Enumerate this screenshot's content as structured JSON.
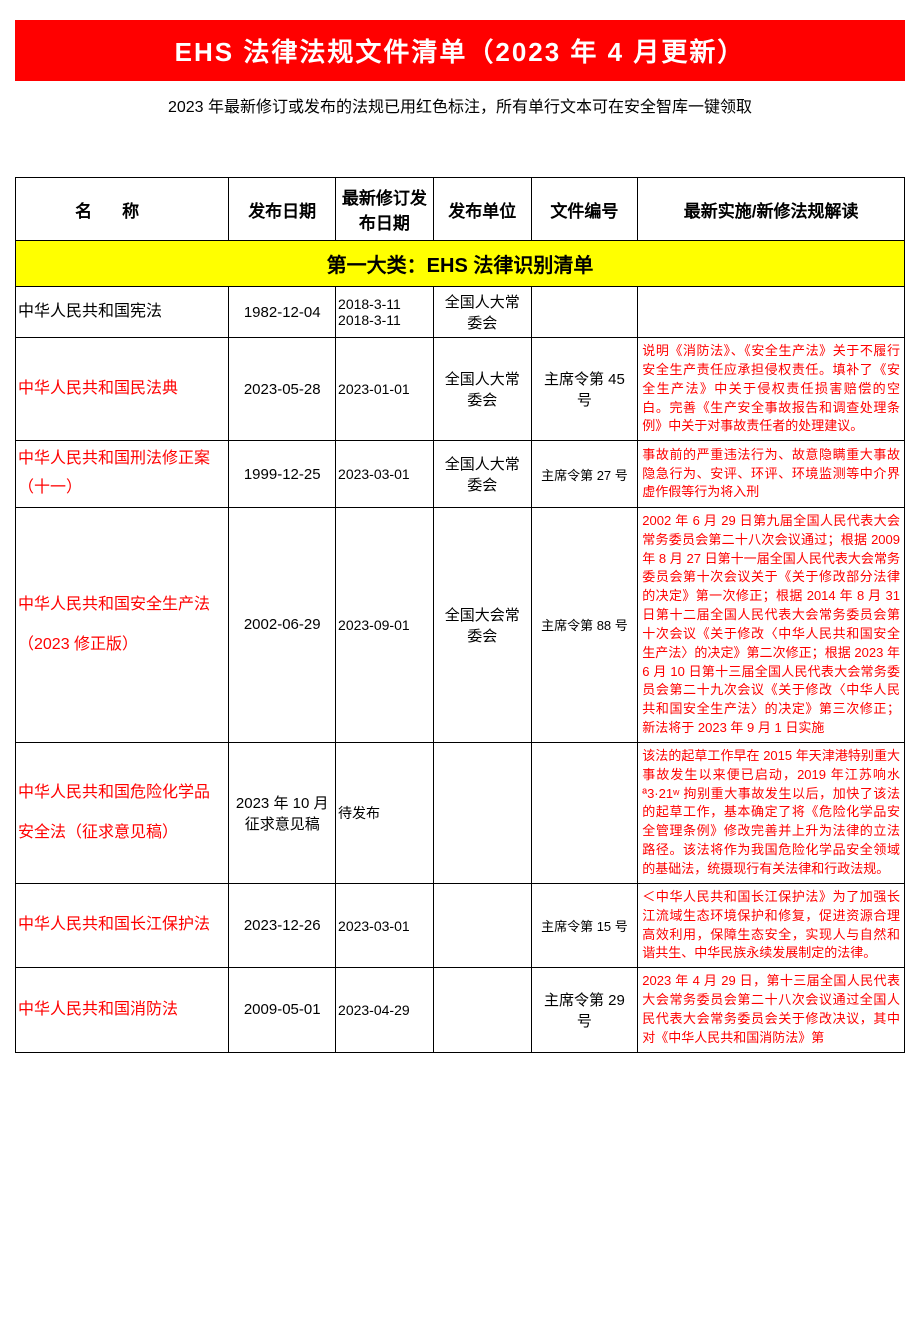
{
  "title": "EHS 法律法规文件清单（2023 年 4 月更新）",
  "subtitle": "2023 年最新修订或发布的法规已用红色标注，所有单行文本可在安全智库一键领取",
  "colors": {
    "banner_bg": "#ff0000",
    "banner_text": "#ffffff",
    "category_bg": "#ffff00",
    "highlight_text": "#ff0000",
    "border": "#000000",
    "body_bg": "#ffffff"
  },
  "columns": {
    "name": "名称",
    "pubdate": "发布日期",
    "revdate": "最新修订发布日期",
    "unit": "发布单位",
    "docno": "文件编号",
    "interp": "最新实施/新修法规解读"
  },
  "column_widths": {
    "name": "24%",
    "pubdate": "12%",
    "revdate": "11%",
    "unit": "11%",
    "docno": "12%",
    "interp": "30%"
  },
  "category": "第一大类：EHS 法律识别清单",
  "rows": [
    {
      "name": "中华人民共和国宪法",
      "name_red": false,
      "pubdate": "1982-12-04",
      "revdate": "2018-3-11\n2018-3-11",
      "unit": "全国人大常委会",
      "docno": "",
      "interp": ""
    },
    {
      "name": "中华人民共和国民法典",
      "name_red": true,
      "pubdate": "2023-05-28",
      "revdate": "2023-01-01",
      "unit": "全国人大常委会",
      "docno": "主席令第 45 号",
      "interp": "说明《消防法》、《安全生产法》关于不履行安全生产责任应承担侵权责任。填补了《安全生产法》中关于侵权责任损害赔偿的空白。完善《生产安全事故报告和调查处理条例》中关于对事故责任者的处理建议。"
    },
    {
      "name": "中华人民共和国刑法修正案（十一）",
      "name_red": true,
      "pubdate": "1999-12-25",
      "revdate": "2023-03-01",
      "unit": "全国人大常委会",
      "docno": "主席令第 27 号",
      "interp": "事故前的严重违法行为、故意隐瞒重大事故隐急行为、安评、环评、环境监测等中介界虚作假等行为将入刑"
    },
    {
      "name": "中华人民共和国安全生产法\n（2023 修正版）",
      "name_red": true,
      "pubdate": "2002-06-29",
      "revdate": "2023-09-01",
      "unit": "全国大会常委会",
      "docno": "主席令第 88 号",
      "interp": "2002 年 6 月 29 日第九届全国人民代表大会常务委员会第二十八次会议通过；根据 2009 年 8 月 27 日第十一届全国人民代表大会常务委员会第十次会议关于《关于修改部分法律的决定》第一次修正；根据 2014 年 8 月 31 日第十二届全国人民代表大会常务委员会第十次会议《关于修改〈中华人民共和国安全生产法〉的决定》第二次修正；根据 2023 年 6 月 10 日第十三届全国人民代表大会常务委员会第二十九次会议《关于修改〈中华人民共和国安全生产法〉的决定》第三次修正；新法将于 2023 年 9 月 1 日实施"
    },
    {
      "name": "中华人民共和国危险化学品\n安全法（征求意见稿）",
      "name_red": true,
      "pubdate": "2023 年 10 月征求意见稿",
      "revdate": "待发布",
      "unit": "",
      "docno": "",
      "interp": "该法的起草工作早在 2015 年天津港特别重大事故发生以来便已启动，2019 年江苏响水 ª3·21ʷ 拘别重大事故发生以后，加快了该法的起草工作，基本确定了将《危险化学品安全管理条例》修改完善并上升为法律的立法路径。该法将作为我国危险化学品安全领域的基础法，统摄现行有关法律和行政法规。"
    },
    {
      "name": "中华人民共和国长江保护法",
      "name_red": true,
      "pubdate": "2023-12-26",
      "revdate": "2023-03-01",
      "unit": "",
      "docno": "主席令第 15 号",
      "interp": "＜中华人民共和国长江保护法》为了加强长江流域生态环境保护和修复，促进资源合理高效利用，保障生态安全，实现人与自然和谐共生、中华民族永续发展制定的法律。"
    },
    {
      "name": "中华人民共和国消防法",
      "name_red": true,
      "pubdate": "2009-05-01",
      "revdate": "2023-04-29",
      "unit": "",
      "docno": "主席令第 29 号",
      "interp": "2023 年 4 月 29 日，第十三届全国人民代表大会常务委员会第二十八次会议通过全国人民代表大会常务委员会关于修改决议，其中对《中华人民共和国消防法》第"
    }
  ]
}
